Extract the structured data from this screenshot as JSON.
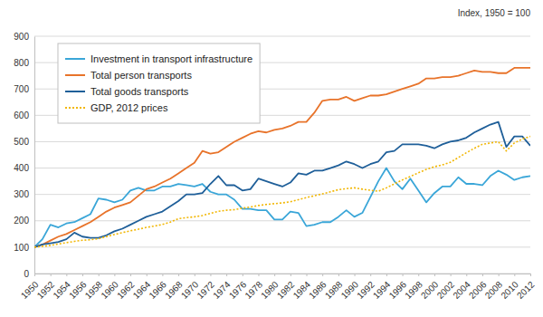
{
  "chart_data": {
    "type": "line",
    "annotation": "Index, 1950 = 100",
    "x": [
      1950,
      1951,
      1952,
      1953,
      1954,
      1955,
      1956,
      1957,
      1958,
      1959,
      1960,
      1961,
      1962,
      1963,
      1964,
      1965,
      1966,
      1967,
      1968,
      1969,
      1970,
      1971,
      1972,
      1973,
      1974,
      1975,
      1976,
      1977,
      1978,
      1979,
      1980,
      1981,
      1982,
      1983,
      1984,
      1985,
      1986,
      1987,
      1988,
      1989,
      1990,
      1991,
      1992,
      1993,
      1994,
      1995,
      1996,
      1997,
      1998,
      1999,
      2000,
      2001,
      2002,
      2003,
      2004,
      2005,
      2006,
      2007,
      2008,
      2009,
      2010,
      2011,
      2012
    ],
    "xlim": [
      1950,
      2012
    ],
    "xticks": [
      1950,
      1952,
      1954,
      1956,
      1958,
      1960,
      1962,
      1964,
      1966,
      1968,
      1970,
      1972,
      1974,
      1976,
      1978,
      1980,
      1982,
      1984,
      1986,
      1988,
      1990,
      1992,
      1994,
      1996,
      1998,
      2000,
      2002,
      2004,
      2006,
      2008,
      2010,
      2012
    ],
    "ylim": [
      0,
      900
    ],
    "yticks": [
      0,
      100,
      200,
      300,
      400,
      500,
      600,
      700,
      800,
      900
    ],
    "grid": true,
    "legend": "upper left",
    "series": [
      {
        "name": "Investment in transport infrastructure",
        "color": "#3aa6d8",
        "line_style": "solid",
        "values": [
          100,
          130,
          185,
          175,
          190,
          195,
          210,
          225,
          285,
          280,
          270,
          280,
          315,
          325,
          315,
          315,
          330,
          330,
          340,
          335,
          330,
          340,
          310,
          300,
          300,
          280,
          245,
          245,
          240,
          240,
          205,
          205,
          235,
          230,
          180,
          185,
          195,
          195,
          215,
          240,
          215,
          230,
          290,
          350,
          400,
          350,
          320,
          360,
          315,
          270,
          305,
          330,
          330,
          365,
          340,
          340,
          335,
          370,
          390,
          375,
          355,
          365,
          370
        ]
      },
      {
        "name": "Total person transports",
        "color": "#e8732a",
        "line_style": "solid",
        "values": [
          100,
          110,
          125,
          140,
          150,
          165,
          180,
          195,
          215,
          235,
          250,
          260,
          270,
          295,
          320,
          330,
          345,
          360,
          380,
          400,
          420,
          465,
          455,
          460,
          480,
          500,
          515,
          530,
          540,
          535,
          545,
          550,
          560,
          575,
          575,
          610,
          655,
          660,
          660,
          670,
          655,
          665,
          675,
          675,
          680,
          690,
          700,
          710,
          720,
          740,
          740,
          745,
          745,
          750,
          760,
          770,
          765,
          765,
          760,
          760,
          780,
          780,
          780
        ]
      },
      {
        "name": "Total goods transports",
        "color": "#1f5f99",
        "line_style": "solid",
        "values": [
          100,
          110,
          115,
          120,
          130,
          155,
          140,
          135,
          135,
          145,
          160,
          170,
          185,
          200,
          215,
          225,
          235,
          255,
          275,
          300,
          300,
          305,
          340,
          370,
          335,
          335,
          315,
          320,
          360,
          350,
          340,
          330,
          345,
          380,
          375,
          390,
          390,
          400,
          410,
          425,
          415,
          400,
          415,
          425,
          460,
          465,
          490,
          490,
          490,
          485,
          475,
          490,
          500,
          505,
          515,
          535,
          550,
          565,
          575,
          480,
          520,
          520,
          485
        ]
      },
      {
        "name": "GDP, 2012 prices",
        "color": "#f2b705",
        "line_style": "dotted",
        "values": [
          100,
          103,
          107,
          112,
          117,
          122,
          126,
          128,
          132,
          140,
          148,
          155,
          162,
          168,
          175,
          180,
          186,
          195,
          208,
          212,
          215,
          220,
          228,
          236,
          240,
          242,
          248,
          252,
          258,
          262,
          265,
          268,
          272,
          280,
          288,
          295,
          302,
          310,
          318,
          322,
          325,
          320,
          316,
          312,
          325,
          340,
          355,
          368,
          382,
          395,
          405,
          412,
          422,
          440,
          458,
          475,
          490,
          495,
          500,
          465,
          495,
          510,
          520
        ]
      }
    ]
  }
}
